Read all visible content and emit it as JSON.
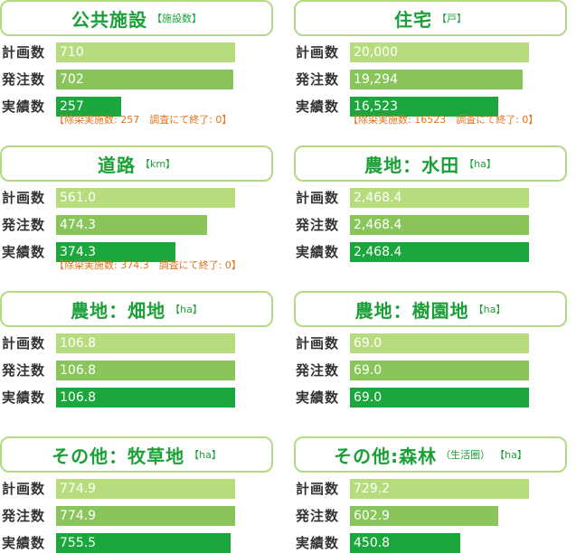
{
  "row_labels": {
    "plan": "計画数",
    "order": "発注数",
    "actual": "実績数"
  },
  "chart_data": [
    {
      "type": "bar",
      "title": "公共施設",
      "unit": "【施設数】",
      "note": "",
      "categories": [
        "計画数",
        "発注数",
        "実績数"
      ],
      "values": [
        710,
        702,
        257
      ],
      "display": [
        "710",
        "702",
        "257"
      ],
      "xlim": [
        0,
        710
      ],
      "footnote": "【除染実施数: 257　調査にて終了: 0】"
    },
    {
      "type": "bar",
      "title": "住宅",
      "unit": "【戸】",
      "note": "",
      "categories": [
        "計画数",
        "発注数",
        "実績数"
      ],
      "values": [
        20000,
        19294,
        16523
      ],
      "display": [
        "20,000",
        "19,294",
        "16,523"
      ],
      "xlim": [
        0,
        20000
      ],
      "footnote": "【除染実施数: 16523　調査にて終了: 0】"
    },
    {
      "type": "bar",
      "title": "道路",
      "unit": "【km】",
      "note": "",
      "categories": [
        "計画数",
        "発注数",
        "実績数"
      ],
      "values": [
        561.0,
        474.3,
        374.3
      ],
      "display": [
        "561.0",
        "474.3",
        "374.3"
      ],
      "xlim": [
        0,
        561.0
      ],
      "footnote": "【除染実施数: 374.3　調査にて終了: 0】"
    },
    {
      "type": "bar",
      "title": "農地：水田",
      "unit": "【ha】",
      "note": "",
      "categories": [
        "計画数",
        "発注数",
        "実績数"
      ],
      "values": [
        2468.4,
        2468.4,
        2468.4
      ],
      "display": [
        "2,468.4",
        "2,468.4",
        "2,468.4"
      ],
      "xlim": [
        0,
        2468.4
      ],
      "footnote": ""
    },
    {
      "type": "bar",
      "title": "農地：畑地",
      "unit": "【ha】",
      "note": "",
      "categories": [
        "計画数",
        "発注数",
        "実績数"
      ],
      "values": [
        106.8,
        106.8,
        106.8
      ],
      "display": [
        "106.8",
        "106.8",
        "106.8"
      ],
      "xlim": [
        0,
        106.8
      ],
      "footnote": ""
    },
    {
      "type": "bar",
      "title": "農地：樹園地",
      "unit": "【ha】",
      "note": "",
      "categories": [
        "計画数",
        "発注数",
        "実績数"
      ],
      "values": [
        69.0,
        69.0,
        69.0
      ],
      "display": [
        "69.0",
        "69.0",
        "69.0"
      ],
      "xlim": [
        0,
        69.0
      ],
      "footnote": ""
    },
    {
      "type": "bar",
      "title": "その他：牧草地",
      "unit": "【ha】",
      "note": "",
      "categories": [
        "計画数",
        "発注数",
        "実績数"
      ],
      "values": [
        774.9,
        774.9,
        755.5
      ],
      "display": [
        "774.9",
        "774.9",
        "755.5"
      ],
      "xlim": [
        0,
        774.9
      ],
      "footnote": ""
    },
    {
      "type": "bar",
      "title": "その他:森林",
      "unit": "【ha】",
      "note": "（生活圏）",
      "categories": [
        "計画数",
        "発注数",
        "実績数"
      ],
      "values": [
        729.2,
        602.9,
        450.8
      ],
      "display": [
        "729.2",
        "602.9",
        "450.8"
      ],
      "xlim": [
        0,
        729.2
      ],
      "footnote": ""
    }
  ]
}
